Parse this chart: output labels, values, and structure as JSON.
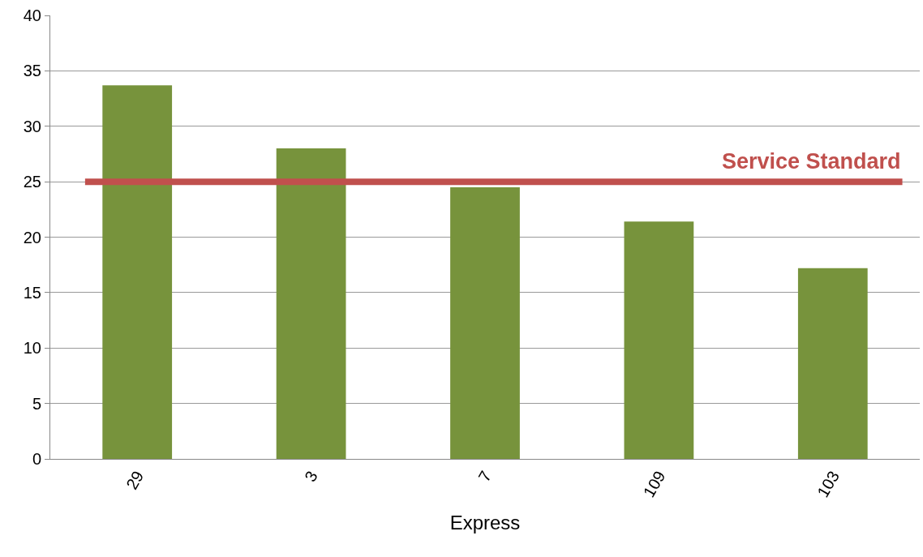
{
  "chart_data": {
    "type": "bar",
    "xlabel": "Express",
    "categories": [
      "29",
      "3",
      "7",
      "109",
      "103"
    ],
    "values": [
      33.7,
      28,
      24.5,
      21.4,
      17.2
    ],
    "color": "#77933c",
    "ylim": [
      0,
      40
    ],
    "yticks": [
      0,
      5,
      10,
      15,
      20,
      25,
      30,
      35,
      40
    ],
    "grid": "y",
    "ref_lines": [
      {
        "axis": "y",
        "value": 25,
        "label": "Service Standard",
        "color": "#c0504d"
      }
    ]
  }
}
